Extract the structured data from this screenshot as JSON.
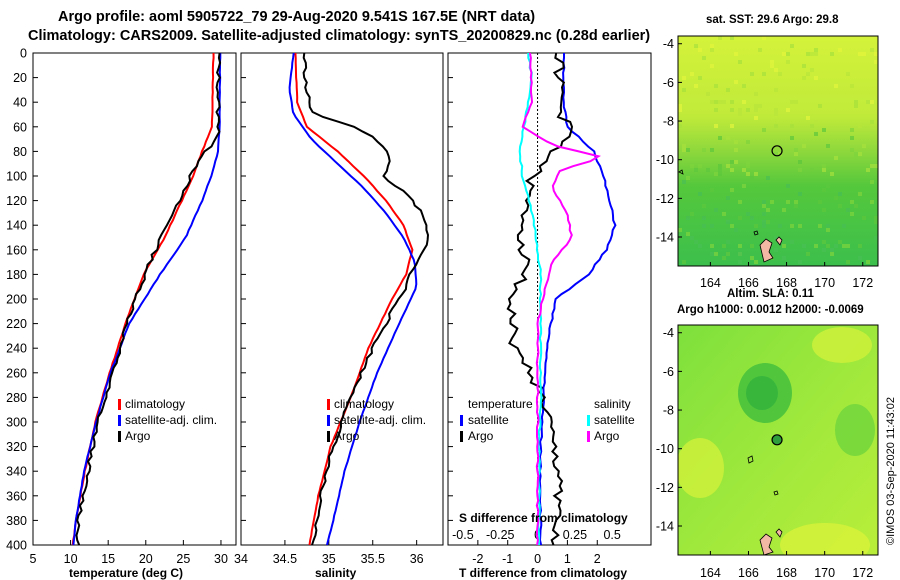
{
  "header": {
    "line1": "Argo profile: aoml 5905722_79 29-Aug-2020 9.541S 167.5E (NRT data)",
    "line2": "Climatology: CARS2009. Satellite-adjusted climatology: synTS_20200829.nc (0.28d earlier)"
  },
  "colors": {
    "climatology": "#ff0000",
    "satellite": "#0000ff",
    "argo": "#000000",
    "salinity_diff": "#ff00ff",
    "salinity_sat": "#00ffff"
  },
  "chart_data": [
    {
      "type": "line",
      "name": "temperature",
      "xlabel": "temperature (deg C)",
      "xlim": [
        5,
        32
      ],
      "xticks": [
        "5",
        "10",
        "15",
        "20",
        "25",
        "30"
      ],
      "xtick_values": [
        5,
        10,
        15,
        20,
        25,
        30
      ],
      "ylim": [
        0,
        400
      ],
      "yticks": [
        "0",
        "20",
        "40",
        "60",
        "80",
        "100",
        "120",
        "140",
        "160",
        "180",
        "200",
        "220",
        "240",
        "260",
        "280",
        "300",
        "320",
        "340",
        "360",
        "380",
        "400"
      ],
      "ytick_values": [
        0,
        20,
        40,
        60,
        80,
        100,
        120,
        140,
        160,
        180,
        200,
        220,
        240,
        260,
        280,
        300,
        320,
        340,
        360,
        380,
        400
      ],
      "legend": [
        "climatology",
        "satellite-adj. clim.",
        "Argo"
      ],
      "series": [
        {
          "name": "climatology",
          "color": "#ff0000",
          "depth": [
            0,
            60,
            80,
            100,
            120,
            150,
            180,
            220,
            260,
            300,
            340,
            380,
            400
          ],
          "values": [
            29.0,
            28.8,
            27.5,
            26.3,
            24.8,
            22.5,
            19.7,
            17.3,
            15.2,
            13.3,
            11.9,
            10.7,
            10.3
          ]
        },
        {
          "name": "satellite-adj. clim.",
          "color": "#0000ff",
          "depth": [
            0,
            60,
            80,
            100,
            120,
            150,
            180,
            220,
            260,
            300,
            340,
            380,
            400
          ],
          "values": [
            29.9,
            29.8,
            29.6,
            28.7,
            27.5,
            25.3,
            21.9,
            17.8,
            15.3,
            13.4,
            11.8,
            10.7,
            10.4
          ]
        },
        {
          "name": "Argo",
          "color": "#000000",
          "depth": [
            0,
            55,
            65,
            80,
            100,
            120,
            150,
            180,
            220,
            260,
            300,
            340,
            380,
            400
          ],
          "values": [
            29.7,
            29.6,
            29.9,
            28.0,
            26.0,
            24.4,
            22.0,
            19.9,
            17.5,
            15.6,
            13.6,
            12.3,
            11.1,
            10.9
          ]
        }
      ]
    },
    {
      "type": "line",
      "name": "salinity",
      "xlabel": "salinity",
      "xlim": [
        34,
        36.3
      ],
      "xticks": [
        "34",
        "34.5",
        "35",
        "35.5",
        "36"
      ],
      "xtick_values": [
        34,
        34.5,
        35,
        35.5,
        36
      ],
      "ylim": [
        0,
        400
      ],
      "legend": [
        "climatology",
        "satellite-adj. clim.",
        "Argo"
      ],
      "series": [
        {
          "name": "climatology",
          "color": "#ff0000",
          "depth": [
            0,
            40,
            60,
            80,
            100,
            120,
            140,
            160,
            180,
            200,
            240,
            280,
            320,
            360,
            400
          ],
          "values": [
            34.62,
            34.64,
            34.75,
            35.1,
            35.4,
            35.65,
            35.85,
            35.95,
            35.88,
            35.72,
            35.45,
            35.25,
            35.02,
            34.88,
            34.78
          ]
        },
        {
          "name": "satellite-adj. clim.",
          "color": "#0000ff",
          "depth": [
            0,
            30,
            50,
            70,
            90,
            110,
            130,
            150,
            170,
            190,
            220,
            260,
            300,
            340,
            380,
            400
          ],
          "values": [
            34.6,
            34.55,
            34.6,
            34.8,
            35.1,
            35.4,
            35.65,
            35.85,
            35.98,
            36.0,
            35.8,
            35.55,
            35.35,
            35.18,
            35.05,
            34.98
          ]
        },
        {
          "name": "Argo",
          "color": "#000000",
          "depth": [
            0,
            30,
            50,
            60,
            70,
            80,
            90,
            100,
            110,
            120,
            130,
            140,
            150,
            160,
            170,
            180,
            195,
            210,
            240,
            280,
            320,
            360,
            400
          ],
          "values": [
            34.72,
            34.74,
            34.82,
            35.3,
            35.55,
            35.65,
            35.7,
            35.62,
            35.8,
            35.95,
            36.05,
            36.1,
            36.12,
            36.1,
            36.0,
            35.92,
            35.85,
            35.72,
            35.5,
            35.25,
            35.05,
            34.9,
            34.82
          ]
        }
      ]
    },
    {
      "type": "line",
      "name": "difference",
      "xlabel": "T difference from climatology",
      "x2label": "S difference from climatology",
      "xlim": [
        -3,
        3.8
      ],
      "xticks": [
        "-2",
        "-1",
        "0",
        "1",
        "2"
      ],
      "xtick_values": [
        -2,
        -1,
        0,
        1,
        2
      ],
      "x2ticks": [
        "-0.5",
        "-0.25",
        "0",
        "0.25",
        "0.5"
      ],
      "x2tick_values": [
        -0.5,
        -0.25,
        0,
        0.25,
        0.5
      ],
      "x2_scale": 5,
      "ylim": [
        0,
        400
      ],
      "legend_temperature_title": "temperature",
      "legend_salinity_title": "salinity",
      "legend_temperature": [
        "satellite",
        "Argo"
      ],
      "legend_salinity": [
        "satellite",
        "Argo"
      ],
      "series": [
        {
          "name": "temperature satellite",
          "color": "#0000ff",
          "depth": [
            0,
            40,
            60,
            80,
            100,
            120,
            140,
            160,
            180,
            200,
            240,
            280,
            320,
            360,
            400
          ],
          "values": [
            0.9,
            0.85,
            1.0,
            1.9,
            2.2,
            2.4,
            2.6,
            2.3,
            1.7,
            0.6,
            0.3,
            0.2,
            0.1,
            0.1,
            0.1
          ]
        },
        {
          "name": "temperature Argo",
          "color": "#000000",
          "depth": [
            0,
            50,
            65,
            80,
            100,
            120,
            150,
            180,
            200,
            240,
            260,
            290,
            320,
            350,
            380,
            400
          ],
          "values": [
            0.7,
            0.8,
            1.1,
            0.6,
            -0.2,
            -0.4,
            -0.5,
            -0.4,
            -0.9,
            -0.8,
            -0.2,
            0.3,
            0.5,
            0.8,
            0.6,
            0.5
          ]
        },
        {
          "name": "salinity satellite",
          "color": "#00ffff",
          "depth": [
            0,
            20,
            40,
            60,
            80,
            100,
            120,
            140,
            160,
            180,
            200,
            240,
            280,
            320,
            360,
            400
          ],
          "values": [
            -0.06,
            -0.04,
            -0.06,
            -0.09,
            -0.12,
            -0.1,
            -0.06,
            -0.02,
            0.0,
            0.02,
            0.02,
            0.02,
            0.02,
            0.01,
            0.01,
            0.01
          ]
        },
        {
          "name": "salinity Argo",
          "color": "#ff00ff",
          "depth": [
            0,
            40,
            60,
            75,
            85,
            95,
            110,
            130,
            150,
            170,
            190,
            220,
            260,
            300,
            340,
            380,
            400
          ],
          "values": [
            -0.05,
            -0.04,
            -0.1,
            0.1,
            0.44,
            0.15,
            0.1,
            0.2,
            0.23,
            0.1,
            0.05,
            0.0,
            0.0,
            0.0,
            0.0,
            0.0,
            0.0
          ]
        }
      ]
    },
    {
      "type": "heatmap",
      "name": "sst_map",
      "title": "sat. SST: 29.6  Argo: 29.8",
      "xticks": [
        "164",
        "166",
        "168",
        "170",
        "172"
      ],
      "xtick_values": [
        164,
        166,
        168,
        170,
        172
      ],
      "yticks": [
        "-4",
        "-6",
        "-8",
        "-10",
        "-12",
        "-14"
      ],
      "ytick_values": [
        -4,
        -6,
        -8,
        -10,
        -12,
        -14
      ],
      "xlim": [
        162.3,
        172.8
      ],
      "ylim": [
        -15.5,
        -3.6
      ],
      "marker": {
        "lon": 167.5,
        "lat": -9.54
      }
    },
    {
      "type": "heatmap",
      "name": "sla_map",
      "title": "Altim. SLA: 0.11",
      "subtitle": "Argo h1000: 0.0012  h2000: -0.0069",
      "xticks": [
        "164",
        "166",
        "168",
        "170",
        "172"
      ],
      "xtick_values": [
        164,
        166,
        168,
        170,
        172
      ],
      "yticks": [
        "-4",
        "-6",
        "-8",
        "-10",
        "-12",
        "-14"
      ],
      "ytick_values": [
        -4,
        -6,
        -8,
        -10,
        -12,
        -14
      ],
      "xlim": [
        162.3,
        172.8
      ],
      "ylim": [
        -15.5,
        -3.6
      ],
      "marker": {
        "lon": 167.5,
        "lat": -9.54
      }
    }
  ],
  "stamp": "©IMOS 03-Sep-2020 11:43:02"
}
